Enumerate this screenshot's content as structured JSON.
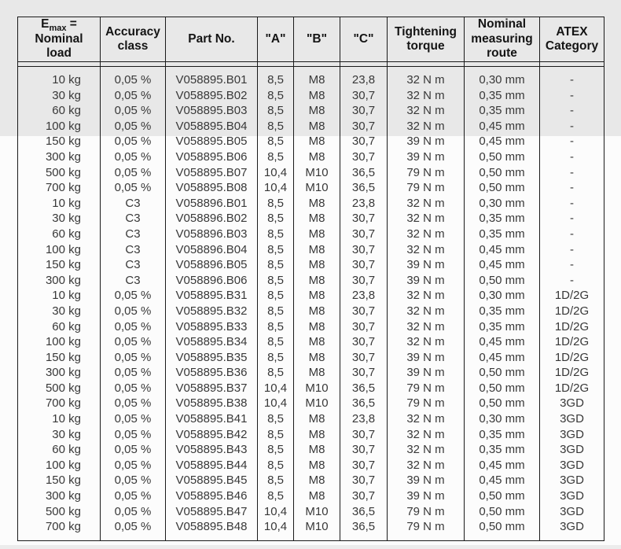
{
  "document": {
    "kind": "load-cell-specification-table"
  },
  "colors": {
    "scan_band_top": "#e8e8e8",
    "scan_band_bottom": "#ececec",
    "border": "#1a1a1a",
    "header_text": "#141414",
    "body_text": "#383838",
    "page_bg": "#fcfcfc"
  },
  "table": {
    "headers": [
      {
        "id": "nominal-load",
        "lines": [
          "E|max| =",
          "Nominal",
          "load"
        ]
      },
      {
        "id": "accuracy-class",
        "lines": [
          "Accuracy",
          "class"
        ]
      },
      {
        "id": "part-no",
        "lines": [
          "Part No."
        ]
      },
      {
        "id": "a",
        "lines": [
          "\"A\""
        ]
      },
      {
        "id": "b",
        "lines": [
          "\"B\""
        ]
      },
      {
        "id": "c",
        "lines": [
          "\"C\""
        ]
      },
      {
        "id": "tightening-torque",
        "lines": [
          "Tightening",
          "torque"
        ]
      },
      {
        "id": "measuring-route",
        "lines": [
          "Nominal",
          "measuring",
          "route"
        ]
      },
      {
        "id": "atex-category",
        "lines": [
          "ATEX",
          "Category"
        ]
      }
    ],
    "rows": [
      [
        "10 kg",
        "0,05 %",
        "V058895.B01",
        "8,5",
        "M8",
        "23,8",
        "32 N m",
        "0,30 mm",
        "-"
      ],
      [
        "30 kg",
        "0,05 %",
        "V058895.B02",
        "8,5",
        "M8",
        "30,7",
        "32 N m",
        "0,35 mm",
        "-"
      ],
      [
        "60 kg",
        "0,05 %",
        "V058895.B03",
        "8,5",
        "M8",
        "30,7",
        "32 N m",
        "0,35 mm",
        "-"
      ],
      [
        "100 kg",
        "0,05 %",
        "V058895.B04",
        "8,5",
        "M8",
        "30,7",
        "32 N m",
        "0,45 mm",
        "-"
      ],
      [
        "150 kg",
        "0,05 %",
        "V058895.B05",
        "8,5",
        "M8",
        "30,7",
        "39 N m",
        "0,45 mm",
        "-"
      ],
      [
        "300 kg",
        "0,05 %",
        "V058895.B06",
        "8,5",
        "M8",
        "30,7",
        "39 N m",
        "0,50 mm",
        "-"
      ],
      [
        "500 kg",
        "0,05 %",
        "V058895.B07",
        "10,4",
        "M10",
        "36,5",
        "79 N m",
        "0,50 mm",
        "-"
      ],
      [
        "700 kg",
        "0,05 %",
        "V058895.B08",
        "10,4",
        "M10",
        "36,5",
        "79 N m",
        "0,50 mm",
        "-"
      ],
      [
        "10 kg",
        "C3",
        "V058896.B01",
        "8,5",
        "M8",
        "23,8",
        "32 N m",
        "0,30 mm",
        "-"
      ],
      [
        "30 kg",
        "C3",
        "V058896.B02",
        "8,5",
        "M8",
        "30,7",
        "32 N m",
        "0,35 mm",
        "-"
      ],
      [
        "60 kg",
        "C3",
        "V058896.B03",
        "8,5",
        "M8",
        "30,7",
        "32 N m",
        "0,35 mm",
        "-"
      ],
      [
        "100 kg",
        "C3",
        "V058896.B04",
        "8,5",
        "M8",
        "30,7",
        "32 N m",
        "0,45 mm",
        "-"
      ],
      [
        "150 kg",
        "C3",
        "V058896.B05",
        "8,5",
        "M8",
        "30,7",
        "39 N m",
        "0,45 mm",
        "-"
      ],
      [
        "300 kg",
        "C3",
        "V058896.B06",
        "8,5",
        "M8",
        "30,7",
        "39 N m",
        "0,50 mm",
        "-"
      ],
      [
        "10 kg",
        "0,05 %",
        "V058895.B31",
        "8,5",
        "M8",
        "23,8",
        "32 N m",
        "0,30 mm",
        "1D/2G"
      ],
      [
        "30 kg",
        "0,05 %",
        "V058895.B32",
        "8,5",
        "M8",
        "30,7",
        "32 N m",
        "0,35 mm",
        "1D/2G"
      ],
      [
        "60 kg",
        "0,05 %",
        "V058895.B33",
        "8,5",
        "M8",
        "30,7",
        "32 N m",
        "0,35 mm",
        "1D/2G"
      ],
      [
        "100 kg",
        "0,05 %",
        "V058895.B34",
        "8,5",
        "M8",
        "30,7",
        "32 N m",
        "0,45 mm",
        "1D/2G"
      ],
      [
        "150 kg",
        "0,05 %",
        "V058895.B35",
        "8,5",
        "M8",
        "30,7",
        "39 N m",
        "0,45 mm",
        "1D/2G"
      ],
      [
        "300 kg",
        "0,05 %",
        "V058895.B36",
        "8,5",
        "M8",
        "30,7",
        "39 N m",
        "0,50 mm",
        "1D/2G"
      ],
      [
        "500 kg",
        "0,05 %",
        "V058895.B37",
        "10,4",
        "M10",
        "36,5",
        "79 N m",
        "0,50 mm",
        "1D/2G"
      ],
      [
        "700 kg",
        "0,05 %",
        "V058895.B38",
        "10,4",
        "M10",
        "36,5",
        "79 N m",
        "0,50 mm",
        "3GD"
      ],
      [
        "10 kg",
        "0,05 %",
        "V058895.B41",
        "8,5",
        "M8",
        "23,8",
        "32 N m",
        "0,30 mm",
        "3GD"
      ],
      [
        "30 kg",
        "0,05 %",
        "V058895.B42",
        "8,5",
        "M8",
        "30,7",
        "32 N m",
        "0,35 mm",
        "3GD"
      ],
      [
        "60 kg",
        "0,05 %",
        "V058895.B43",
        "8,5",
        "M8",
        "30,7",
        "32 N m",
        "0,35 mm",
        "3GD"
      ],
      [
        "100 kg",
        "0,05 %",
        "V058895.B44",
        "8,5",
        "M8",
        "30,7",
        "32 N m",
        "0,45 mm",
        "3GD"
      ],
      [
        "150 kg",
        "0,05 %",
        "V058895.B45",
        "8,5",
        "M8",
        "30,7",
        "39 N m",
        "0,45 mm",
        "3GD"
      ],
      [
        "300 kg",
        "0,05 %",
        "V058895.B46",
        "8,5",
        "M8",
        "30,7",
        "39 N m",
        "0,50 mm",
        "3GD"
      ],
      [
        "500 kg",
        "0,05 %",
        "V058895.B47",
        "10,4",
        "M10",
        "36,5",
        "79 N m",
        "0,50 mm",
        "3GD"
      ],
      [
        "700 kg",
        "0,05 %",
        "V058895.B48",
        "10,4",
        "M10",
        "36,5",
        "79 N m",
        "0,50 mm",
        "3GD"
      ]
    ]
  }
}
